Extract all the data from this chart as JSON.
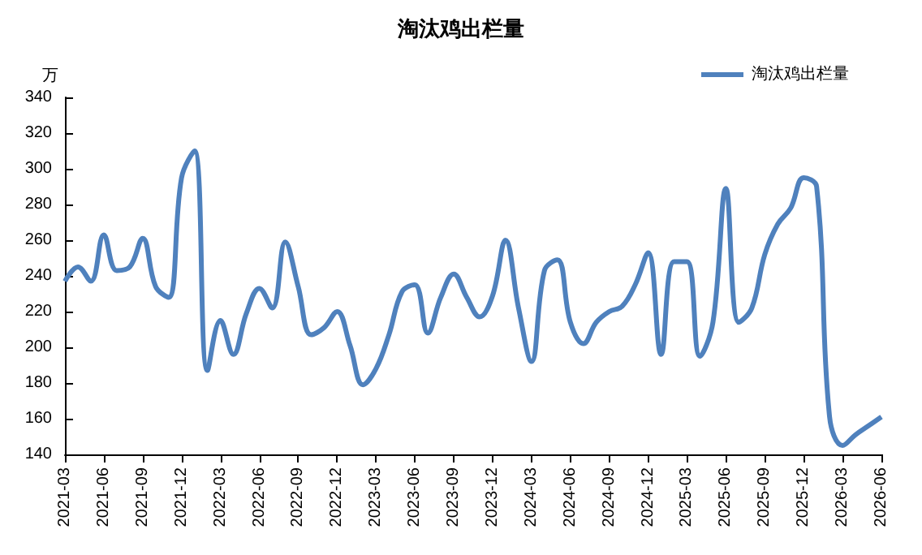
{
  "chart_data": {
    "type": "line",
    "title": "淘汰鸡出栏量",
    "ylabel": "万",
    "categories": [
      "2021-03",
      null,
      null,
      "2021-06",
      null,
      null,
      "2021-09",
      null,
      null,
      "2021-12",
      null,
      null,
      "2022-03",
      null,
      null,
      "2022-06",
      null,
      null,
      "2022-09",
      null,
      null,
      "2022-12",
      null,
      null,
      "2023-03",
      null,
      null,
      "2023-06",
      null,
      null,
      "2023-09",
      null,
      null,
      "2023-12",
      null,
      null,
      "2024-03",
      null,
      null,
      "2024-06",
      null,
      null,
      "2024-09",
      null,
      null,
      "2024-12",
      null,
      null,
      "2025-03",
      null,
      null,
      "2025-06",
      null,
      null,
      "2025-09",
      null,
      null,
      "2025-12",
      null,
      null,
      "2026-03",
      null,
      null,
      "2026-06"
    ],
    "series": [
      {
        "name": "淘汰鸡出栏量",
        "color": "#4f81bd",
        "values": [
          237,
          245,
          237,
          263,
          243,
          245,
          261,
          234,
          228,
          295,
          310,
          187,
          215,
          196,
          219,
          233,
          222,
          259,
          234,
          207,
          211,
          220,
          201,
          179,
          188,
          207,
          231,
          235,
          208,
          228,
          241,
          228,
          217,
          229,
          260,
          222,
          192,
          243,
          249,
          214,
          202,
          214,
          220,
          223,
          235,
          253,
          196,
          248,
          248,
          195,
          214,
          289,
          214,
          222,
          252,
          269,
          278,
          295,
          290,
          161,
          145,
          151,
          156,
          161
        ]
      }
    ],
    "ylim": [
      140,
      340
    ],
    "yticks": [
      140,
      160,
      180,
      200,
      220,
      240,
      260,
      280,
      300,
      320,
      340
    ],
    "grid": false,
    "legend": "top right",
    "marker": "none",
    "line_style": "solid"
  }
}
